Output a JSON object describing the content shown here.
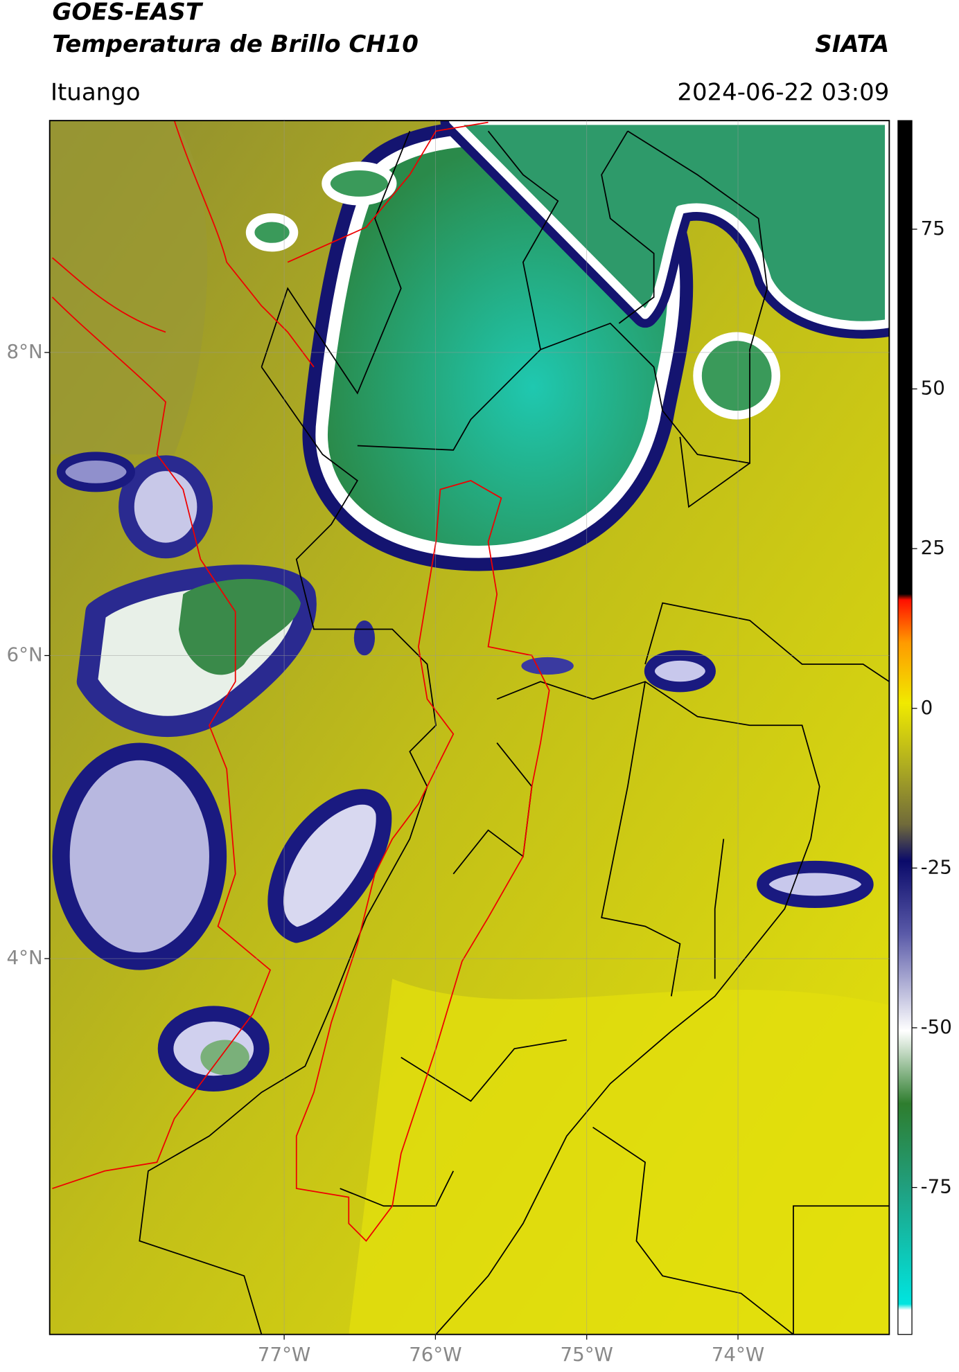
{
  "chart_data": {
    "type": "map",
    "title": "GOES-EAST",
    "subtitle": "Temperatura de Brillo CH10",
    "source": "SIATA",
    "location": "Ituango",
    "datetime": "2024-06-22 03:09",
    "xlim": [
      -78.55,
      -73.0
    ],
    "ylim": [
      1.52,
      9.53
    ],
    "xticks": [
      {
        "value": -77,
        "label": "77°W"
      },
      {
        "value": -76,
        "label": "76°W"
      },
      {
        "value": -75,
        "label": "75°W"
      },
      {
        "value": -74,
        "label": "74°W"
      }
    ],
    "yticks": [
      {
        "value": 8,
        "label": "8°N"
      },
      {
        "value": 6,
        "label": "6°N"
      },
      {
        "value": 4,
        "label": "4°N"
      }
    ],
    "grid": true,
    "colorbar": {
      "clim": [
        -98,
        92
      ],
      "ticks": [
        75,
        50,
        25,
        0,
        -25,
        -50,
        -75
      ]
    }
  }
}
